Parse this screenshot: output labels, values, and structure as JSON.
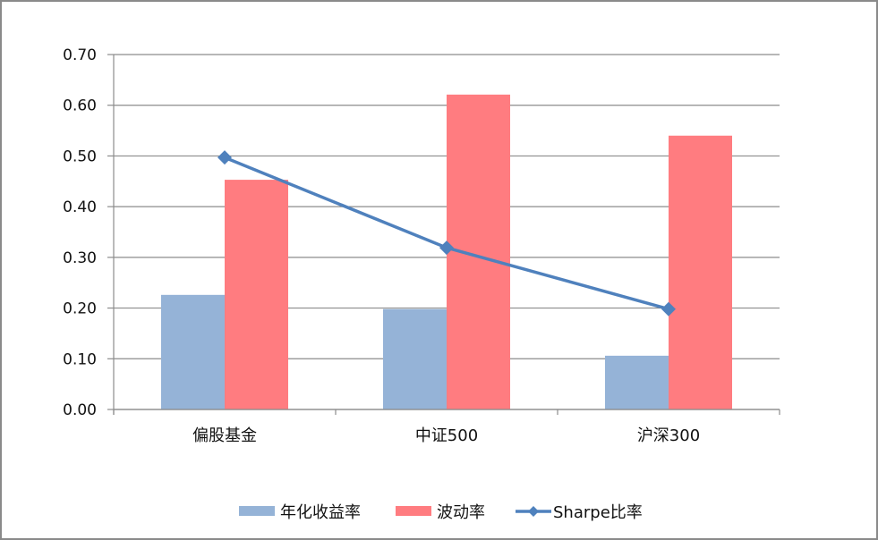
{
  "chart_data": {
    "type": "bar",
    "title": "",
    "xlabel": "",
    "ylabel": "",
    "ylim": [
      0,
      0.7
    ],
    "yticks": [
      "0.00",
      "0.10",
      "0.20",
      "0.30",
      "0.40",
      "0.50",
      "0.60",
      "0.70"
    ],
    "grid": true,
    "legend_position": "bottom",
    "categories": [
      "偏股基金",
      "中证500",
      "沪深300"
    ],
    "series": [
      {
        "name": "年化收益率",
        "type": "bar",
        "color": "#95B3D7",
        "values": [
          0.226,
          0.198,
          0.106
        ]
      },
      {
        "name": "波动率",
        "type": "bar",
        "color": "#FF7C80",
        "values": [
          0.453,
          0.621,
          0.54
        ]
      },
      {
        "name": "Sharpe比率",
        "type": "line",
        "marker": "diamond",
        "color": "#4F81BD",
        "values": [
          0.497,
          0.319,
          0.198
        ]
      }
    ]
  }
}
